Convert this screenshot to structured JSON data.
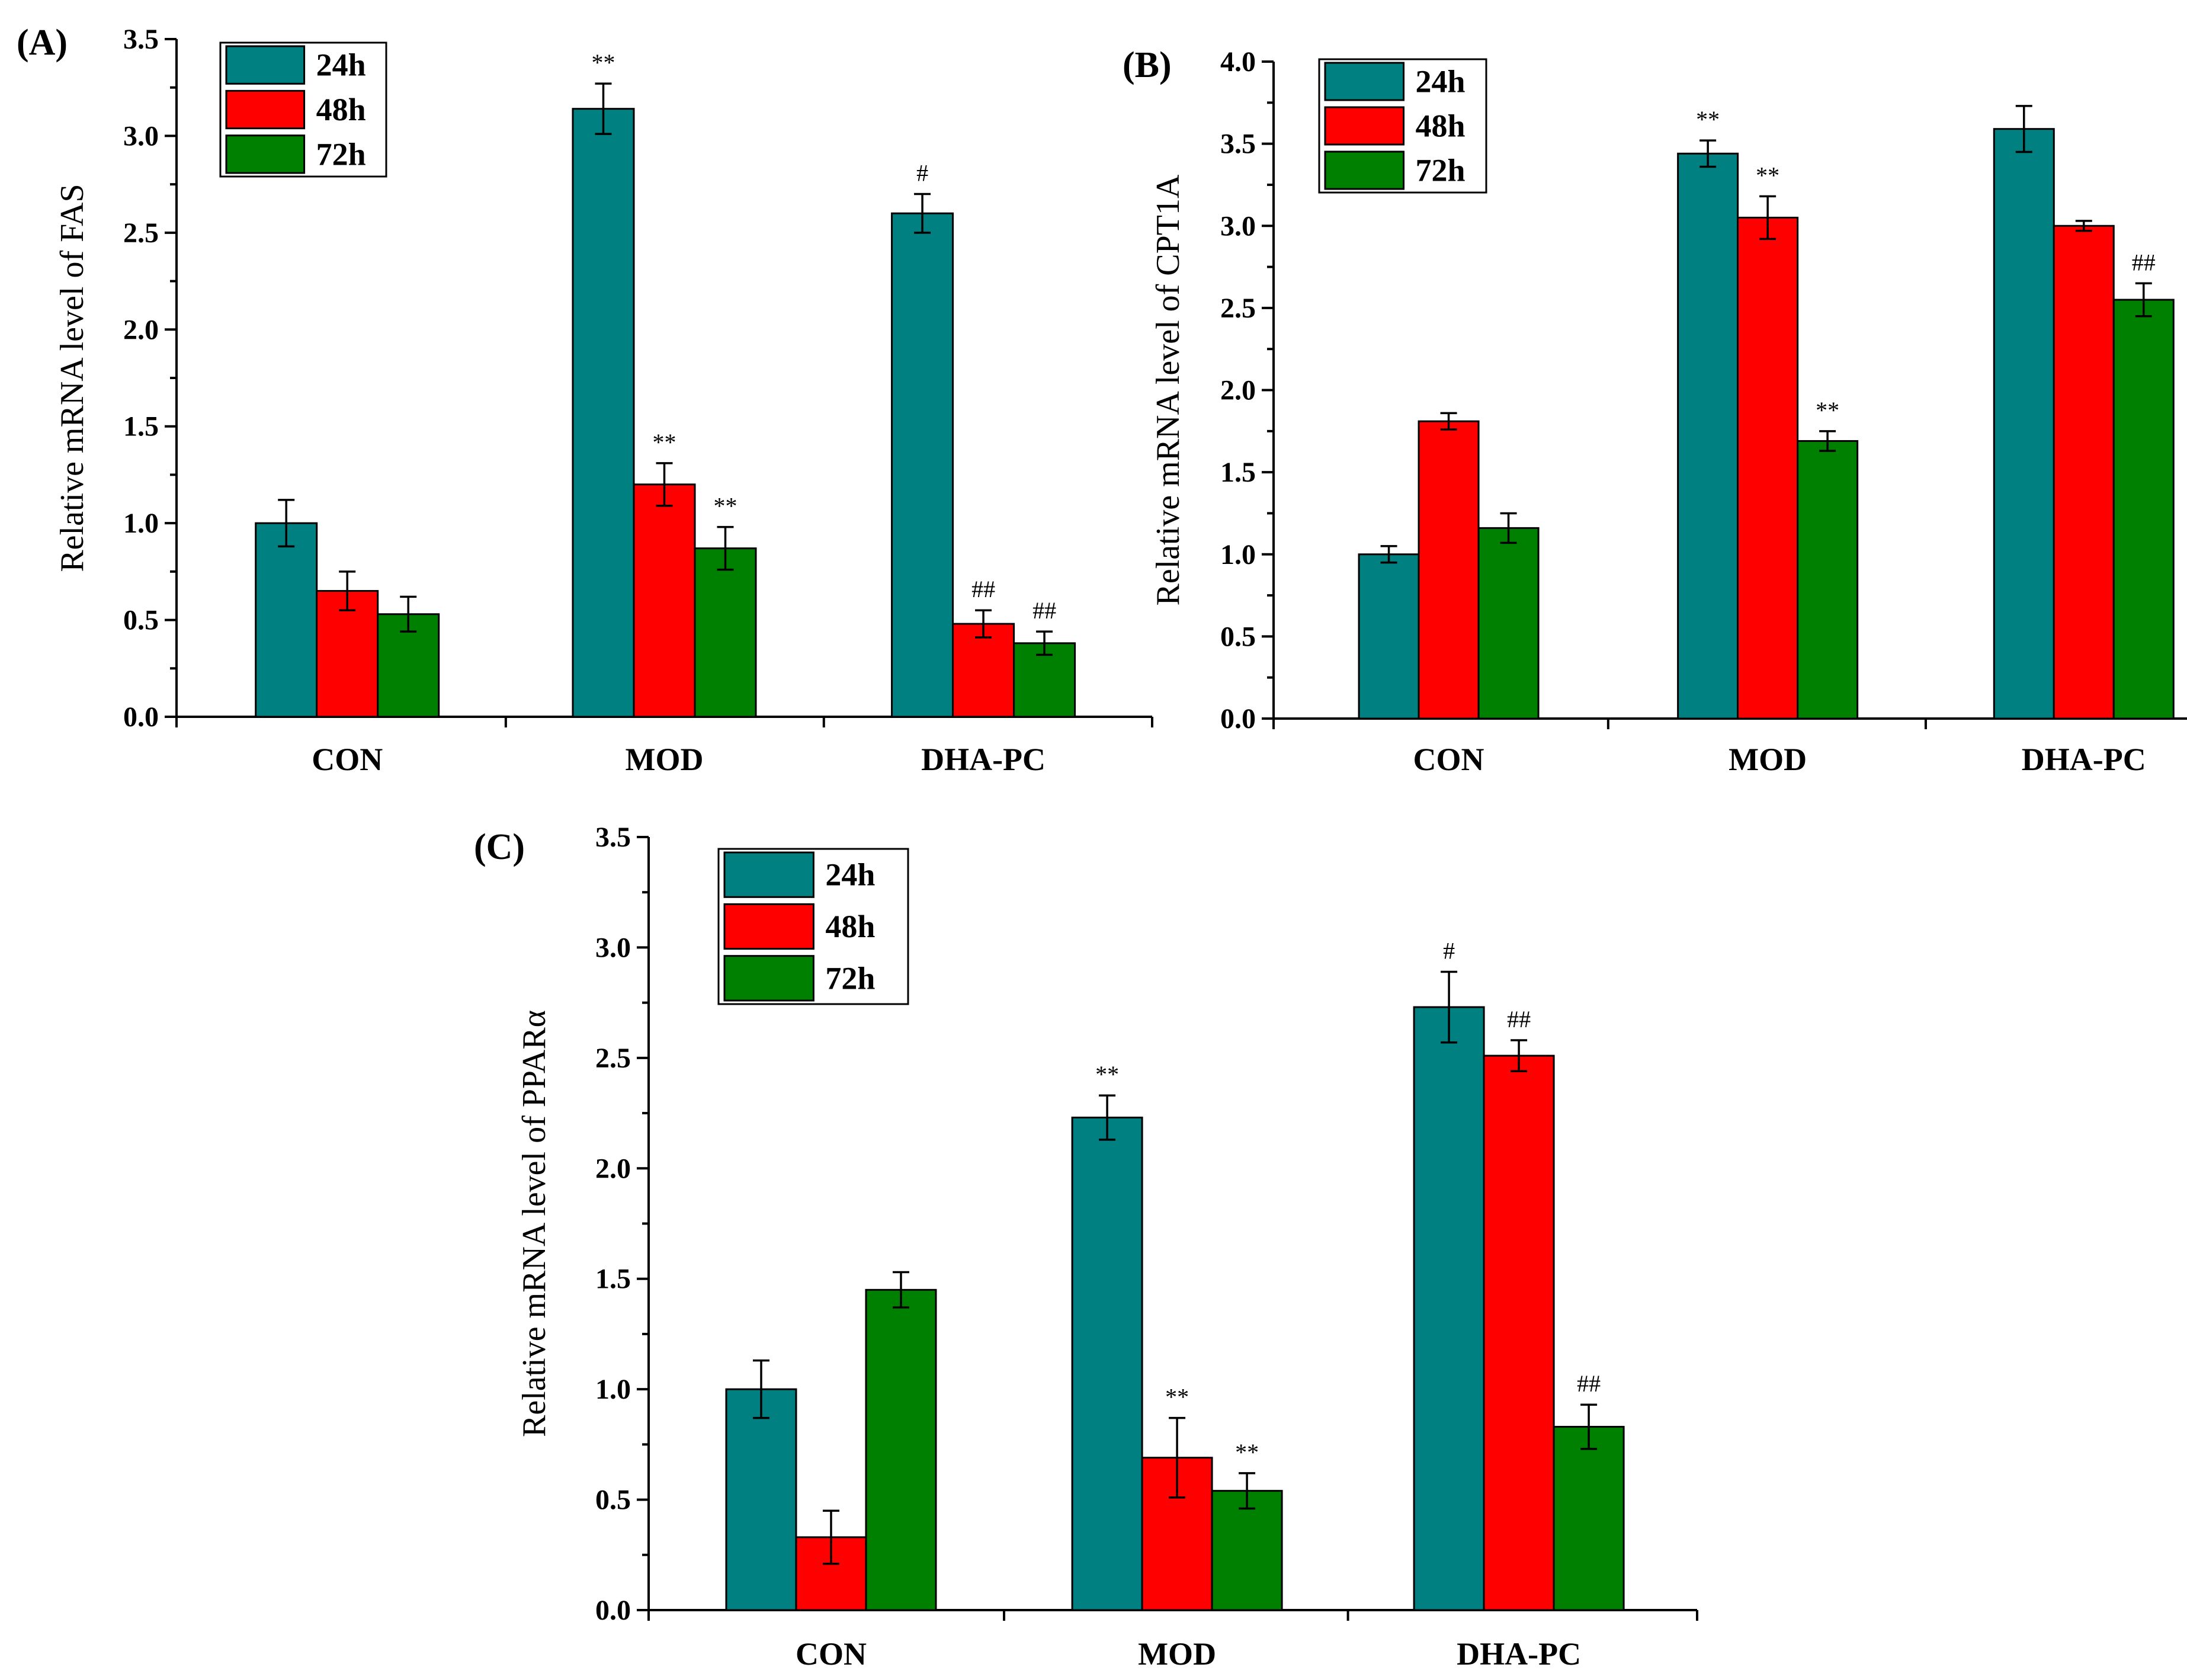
{
  "colors": {
    "24h": "#008080",
    "48h": "#ff0000",
    "72h": "#008000"
  },
  "chart_data": [
    {
      "panel": "(A)",
      "type": "bar",
      "ylabel": "Relative mRNA level of FAS",
      "ylim": [
        0,
        3.5
      ],
      "yticks": [
        "0.0",
        "0.5",
        "1.0",
        "1.5",
        "2.0",
        "2.5",
        "3.0",
        "3.5"
      ],
      "categories": [
        "CON",
        "MOD",
        "DHA-PC"
      ],
      "series": [
        {
          "name": "24h",
          "values": [
            1.0,
            3.14,
            2.6
          ],
          "errors": [
            0.12,
            0.13,
            0.1
          ],
          "annotations": [
            "",
            "**",
            "#"
          ]
        },
        {
          "name": "48h",
          "values": [
            0.65,
            1.2,
            0.48
          ],
          "errors": [
            0.1,
            0.11,
            0.07
          ],
          "annotations": [
            "",
            "**",
            "##"
          ]
        },
        {
          "name": "72h",
          "values": [
            0.53,
            0.87,
            0.38
          ],
          "errors": [
            0.09,
            0.11,
            0.06
          ],
          "annotations": [
            "",
            "**",
            "##"
          ]
        }
      ],
      "legend": "top-left"
    },
    {
      "panel": "(B)",
      "type": "bar",
      "ylabel": "Relative mRNA level of  CPT1A",
      "ylim": [
        0,
        4.0
      ],
      "yticks": [
        "0.0",
        "0.5",
        "1.0",
        "1.5",
        "2.0",
        "2.5",
        "3.0",
        "3.5",
        "4.0"
      ],
      "categories": [
        "CON",
        "MOD",
        "DHA-PC"
      ],
      "series": [
        {
          "name": "24h",
          "values": [
            1.0,
            3.44,
            3.59
          ],
          "errors": [
            0.05,
            0.08,
            0.14
          ],
          "annotations": [
            "",
            "**",
            ""
          ]
        },
        {
          "name": "48h",
          "values": [
            1.81,
            3.05,
            3.0
          ],
          "errors": [
            0.05,
            0.13,
            0.03
          ],
          "annotations": [
            "",
            "**",
            ""
          ]
        },
        {
          "name": "72h",
          "values": [
            1.16,
            1.69,
            2.55
          ],
          "errors": [
            0.09,
            0.06,
            0.1
          ],
          "annotations": [
            "",
            "**",
            "##"
          ]
        }
      ],
      "legend": "top-left"
    },
    {
      "panel": "(C)",
      "type": "bar",
      "ylabel": "Relative mRNA level of  PPARα",
      "ylim": [
        0,
        3.5
      ],
      "yticks": [
        "0.0",
        "0.5",
        "1.0",
        "1.5",
        "2.0",
        "2.5",
        "3.0",
        "3.5"
      ],
      "categories": [
        "CON",
        "MOD",
        "DHA-PC"
      ],
      "series": [
        {
          "name": "24h",
          "values": [
            1.0,
            2.23,
            2.73
          ],
          "errors": [
            0.13,
            0.1,
            0.16
          ],
          "annotations": [
            "",
            "**",
            "#"
          ]
        },
        {
          "name": "48h",
          "values": [
            0.33,
            0.69,
            2.51
          ],
          "errors": [
            0.12,
            0.18,
            0.07
          ],
          "annotations": [
            "",
            "**",
            "##"
          ]
        },
        {
          "name": "72h",
          "values": [
            1.45,
            0.54,
            0.83
          ],
          "errors": [
            0.08,
            0.08,
            0.1
          ],
          "annotations": [
            "",
            "**",
            "##"
          ]
        }
      ],
      "legend": "top-left"
    }
  ]
}
